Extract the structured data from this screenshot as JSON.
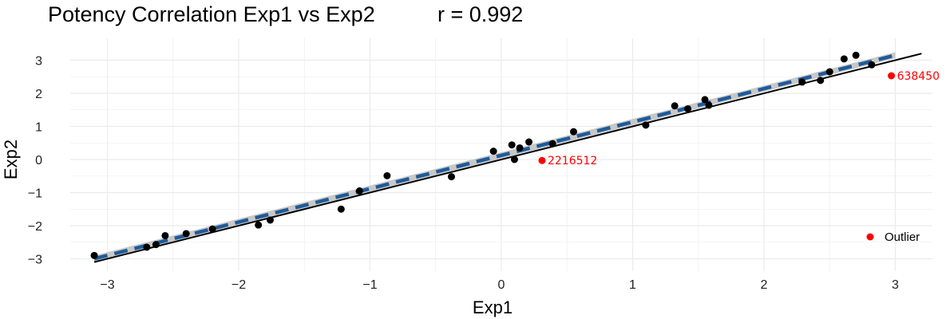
{
  "chart_data": {
    "type": "scatter",
    "title": "Potency Correlation Exp1 vs Exp2",
    "subtitle": "r = 0.992",
    "xlabel": "Exp1",
    "ylabel": "Exp2",
    "xlim": [
      -3.2,
      3.3
    ],
    "ylim": [
      -3.3,
      3.4
    ],
    "xticks": [
      -3,
      -2,
      -1,
      0,
      1,
      2,
      3
    ],
    "yticks": [
      -3,
      -2,
      -1,
      0,
      1,
      2,
      3
    ],
    "xtick_labels": [
      "−3",
      "−2",
      "−1",
      "0",
      "1",
      "2",
      "3"
    ],
    "ytick_labels": [
      "−3",
      "−2",
      "−1",
      "0",
      "1",
      "2",
      "3"
    ],
    "grid": true,
    "colors": {
      "points": "#000000",
      "outlier": "#ff0000",
      "identity_line": "#000000",
      "fit_line": "#1f5b99",
      "confidence_band": "#c8c8c8",
      "grid": "#ebebeb"
    },
    "identity_line": {
      "x": [
        -3.1,
        3.2
      ],
      "y": [
        -3.1,
        3.2
      ]
    },
    "fit_line": {
      "x": [
        -3.1,
        3.0
      ],
      "y": [
        -3.0,
        3.15
      ]
    },
    "confidence_band": {
      "x": [
        -3.1,
        3.0
      ],
      "lower": [
        -3.1,
        3.06
      ],
      "upper": [
        -2.9,
        3.24
      ]
    },
    "series": [
      {
        "name": "",
        "points": [
          [
            -3.1,
            -2.9
          ],
          [
            -2.7,
            -2.65
          ],
          [
            -2.63,
            -2.57
          ],
          [
            -2.56,
            -2.3
          ],
          [
            -2.4,
            -2.24
          ],
          [
            -2.2,
            -2.1
          ],
          [
            -1.85,
            -1.98
          ],
          [
            -1.76,
            -1.83
          ],
          [
            -1.22,
            -1.5
          ],
          [
            -1.08,
            -0.95
          ],
          [
            -0.87,
            -0.49
          ],
          [
            -0.38,
            -0.52
          ],
          [
            -0.06,
            0.25
          ],
          [
            0.08,
            0.44
          ],
          [
            0.1,
            0.0
          ],
          [
            0.14,
            0.35
          ],
          [
            0.21,
            0.53
          ],
          [
            0.39,
            0.48
          ],
          [
            0.55,
            0.84
          ],
          [
            1.1,
            1.04
          ],
          [
            1.32,
            1.62
          ],
          [
            1.42,
            1.53
          ],
          [
            1.55,
            1.81
          ],
          [
            1.58,
            1.64
          ],
          [
            2.29,
            2.34
          ],
          [
            2.43,
            2.39
          ],
          [
            2.5,
            2.65
          ],
          [
            2.61,
            3.04
          ],
          [
            2.7,
            3.15
          ],
          [
            2.82,
            2.86
          ]
        ]
      },
      {
        "name": "Outlier",
        "points": [
          {
            "x": 0.31,
            "y": -0.03,
            "label": "2216512"
          },
          {
            "x": 2.97,
            "y": 2.53,
            "label": "638450"
          }
        ]
      }
    ],
    "legend": {
      "position": "bottom-right",
      "entries": [
        "Outlier"
      ]
    }
  }
}
